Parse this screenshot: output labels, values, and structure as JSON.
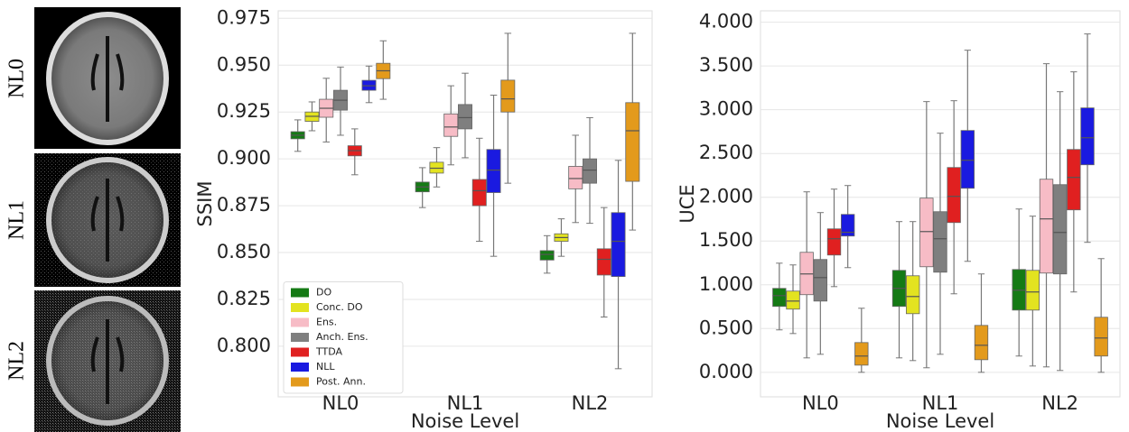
{
  "images": {
    "labels": [
      "NL0",
      "NL1",
      "NL2"
    ]
  },
  "chart_data": [
    {
      "type": "box",
      "x_label": "Noise Level",
      "y_label": "SSIM",
      "categories": [
        "NL0",
        "NL1",
        "NL2"
      ],
      "ylim": [
        0.773,
        0.979
      ],
      "yticks": [
        {
          "value": 0.8,
          "label": "0.800"
        },
        0.825,
        {
          "value": 0.85,
          "label": "0.850"
        },
        0.875,
        {
          "value": 0.9,
          "label": "0.900"
        },
        0.925,
        {
          "value": 0.95,
          "label": "0.950"
        },
        0.975
      ],
      "grid": true,
      "legend": "lower left",
      "series": [
        {
          "name": "DO",
          "color": "#157a15",
          "values": [
            {
              "min": 0.904,
              "q1": 0.9107,
              "median": 0.9126,
              "q3": 0.9145,
              "max": 0.9208
            },
            {
              "min": 0.874,
              "q1": 0.8824,
              "median": 0.885,
              "q3": 0.8876,
              "max": 0.8953
            },
            {
              "min": 0.839,
              "q1": 0.846,
              "median": 0.849,
              "q3": 0.851,
              "max": 0.859
            }
          ]
        },
        {
          "name": "Conc. DO",
          "color": "#e3e320",
          "values": [
            {
              "min": 0.915,
              "q1": 0.92,
              "median": 0.9227,
              "q3": 0.925,
              "max": 0.9304
            },
            {
              "min": 0.885,
              "q1": 0.8924,
              "median": 0.895,
              "q3": 0.8982,
              "max": 0.906
            },
            {
              "min": 0.848,
              "q1": 0.856,
              "median": 0.858,
              "q3": 0.86,
              "max": 0.868
            }
          ]
        },
        {
          "name": "Ens.",
          "color": "#f7bcc6",
          "values": [
            {
              "min": 0.909,
              "q1": 0.9222,
              "median": 0.927,
              "q3": 0.9318,
              "max": 0.943
            },
            {
              "min": 0.8968,
              "q1": 0.912,
              "median": 0.917,
              "q3": 0.924,
              "max": 0.939
            },
            {
              "min": 0.866,
              "q1": 0.884,
              "median": 0.8895,
              "q3": 0.896,
              "max": 0.9126
            }
          ]
        },
        {
          "name": "Anch. Ens.",
          "color": "#7f7f7f",
          "values": [
            {
              "min": 0.9126,
              "q1": 0.926,
              "median": 0.9313,
              "q3": 0.9366,
              "max": 0.949
            },
            {
              "min": 0.9006,
              "q1": 0.916,
              "median": 0.922,
              "q3": 0.929,
              "max": 0.9457
            },
            {
              "min": 0.8656,
              "q1": 0.887,
              "median": 0.894,
              "q3": 0.9,
              "max": 0.922
            }
          ]
        },
        {
          "name": "TTDA",
          "color": "#e02020",
          "values": [
            {
              "min": 0.8915,
              "q1": 0.9016,
              "median": 0.9044,
              "q3": 0.907,
              "max": 0.916
            },
            {
              "min": 0.856,
              "q1": 0.875,
              "median": 0.883,
              "q3": 0.889,
              "max": 0.911
            },
            {
              "min": 0.8156,
              "q1": 0.838,
              "median": 0.8464,
              "q3": 0.852,
              "max": 0.874
            }
          ]
        },
        {
          "name": "NLL",
          "color": "#1a1ae0",
          "values": [
            {
              "min": 0.93,
              "q1": 0.9366,
              "median": 0.939,
              "q3": 0.9419,
              "max": 0.9495
            },
            {
              "min": 0.848,
              "q1": 0.882,
              "median": 0.894,
              "q3": 0.905,
              "max": 0.934
            },
            {
              "min": 0.788,
              "q1": 0.8372,
              "median": 0.856,
              "q3": 0.8713,
              "max": 0.8992
            }
          ]
        },
        {
          "name": "Post. Ann.",
          "color": "#e39a1c",
          "values": [
            {
              "min": 0.9318,
              "q1": 0.9428,
              "median": 0.947,
              "q3": 0.951,
              "max": 0.963
            },
            {
              "min": 0.887,
              "q1": 0.925,
              "median": 0.932,
              "q3": 0.942,
              "max": 0.967
            },
            {
              "min": 0.862,
              "q1": 0.888,
              "median": 0.915,
              "q3": 0.93,
              "max": 0.967
            }
          ]
        }
      ]
    },
    {
      "type": "box",
      "x_label": "Noise Level",
      "y_label": "UCE",
      "categories": [
        "NL0",
        "NL1",
        "NL2"
      ],
      "ylim": [
        -0.28,
        4.13
      ],
      "yticks": [
        {
          "value": 0,
          "label": "0.000"
        },
        {
          "value": 0.5,
          "label": "0.500"
        },
        {
          "value": 1,
          "label": "1.000"
        },
        {
          "value": 1.5,
          "label": "1.500"
        },
        {
          "value": 2,
          "label": "2.000"
        },
        {
          "value": 2.5,
          "label": "2.500"
        },
        {
          "value": 3,
          "label": "3.000"
        },
        {
          "value": 3.5,
          "label": "3.500"
        },
        {
          "value": 4,
          "label": "4.000"
        }
      ],
      "grid": true,
      "series": [
        {
          "color": "#157a15",
          "values": [
            {
              "min": 0.485,
              "q1": 0.753,
              "median": 0.876,
              "q3": 0.959,
              "max": 1.247
            },
            {
              "min": 0.165,
              "q1": 0.753,
              "median": 0.959,
              "q3": 1.165,
              "max": 1.722
            },
            {
              "min": 0.186,
              "q1": 0.711,
              "median": 0.938,
              "q3": 1.175,
              "max": 1.866
            }
          ]
        },
        {
          "color": "#e3e320",
          "values": [
            {
              "min": 0.443,
              "q1": 0.722,
              "median": 0.814,
              "q3": 0.928,
              "max": 1.227
            },
            {
              "min": 0.134,
              "q1": 0.67,
              "median": 0.866,
              "q3": 1.103,
              "max": 1.722
            },
            {
              "min": 0.072,
              "q1": 0.711,
              "median": 0.918,
              "q3": 1.165,
              "max": 1.784
            }
          ]
        },
        {
          "color": "#f7bcc6",
          "values": [
            {
              "min": 0.165,
              "q1": 0.887,
              "median": 1.124,
              "q3": 1.371,
              "max": 2.062
            },
            {
              "min": 0.052,
              "q1": 1.206,
              "median": 1.608,
              "q3": 1.99,
              "max": 3.093
            },
            {
              "min": 0.062,
              "q1": 1.134,
              "median": 1.753,
              "q3": 2.206,
              "max": 3.526
            }
          ]
        },
        {
          "color": "#7f7f7f",
          "values": [
            {
              "min": 0.206,
              "q1": 0.814,
              "median": 1.082,
              "q3": 1.289,
              "max": 1.825
            },
            {
              "min": 0.206,
              "q1": 1.144,
              "median": 1.526,
              "q3": 1.835,
              "max": 2.732
            },
            {
              "min": 0.021,
              "q1": 1.124,
              "median": 1.598,
              "q3": 2.144,
              "max": 3.206
            }
          ]
        },
        {
          "color": "#e02020",
          "values": [
            {
              "min": 0.979,
              "q1": 1.34,
              "median": 1.526,
              "q3": 1.639,
              "max": 2.093
            },
            {
              "min": 0.897,
              "q1": 1.711,
              "median": 2.01,
              "q3": 2.34,
              "max": 3.103
            },
            {
              "min": 0.918,
              "q1": 1.856,
              "median": 2.227,
              "q3": 2.546,
              "max": 3.433
            }
          ]
        },
        {
          "color": "#1a1ae0",
          "values": [
            {
              "min": 1.196,
              "q1": 1.557,
              "median": 1.6,
              "q3": 1.804,
              "max": 2.134
            },
            {
              "min": 1.268,
              "q1": 2.103,
              "median": 2.423,
              "q3": 2.763,
              "max": 3.68
            },
            {
              "min": 1.485,
              "q1": 2.371,
              "median": 2.68,
              "q3": 3.021,
              "max": 3.866
            }
          ]
        },
        {
          "color": "#e39a1c",
          "values": [
            {
              "min": 0,
              "q1": 0.082,
              "median": 0.186,
              "q3": 0.34,
              "max": 0.732
            },
            {
              "min": 0,
              "q1": 0.144,
              "median": 0.309,
              "q3": 0.536,
              "max": 1.124
            },
            {
              "min": 0,
              "q1": 0.186,
              "median": 0.392,
              "q3": 0.629,
              "max": 1.299
            }
          ]
        }
      ]
    }
  ]
}
